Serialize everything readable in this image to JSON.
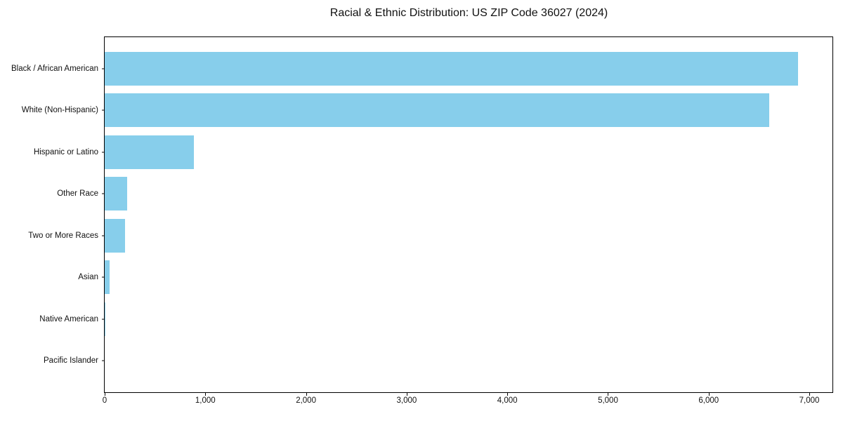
{
  "title": "Racial & Ethnic Distribution: US ZIP Code 36027 (2024)",
  "colors": {
    "bar": "#87CEEB",
    "frame": "#000000",
    "text": "#111111",
    "background": "#ffffff"
  },
  "chart_data": {
    "type": "bar",
    "orientation": "horizontal",
    "title": "Racial & Ethnic Distribution: US ZIP Code 36027 (2024)",
    "categories": [
      "Black / African American",
      "White (Non-Hispanic)",
      "Hispanic or Latino",
      "Other Race",
      "Two or More Races",
      "Asian",
      "Native American",
      "Pacific Islander"
    ],
    "values": [
      6885,
      6600,
      885,
      220,
      205,
      50,
      10,
      0
    ],
    "xlabel": "",
    "ylabel": "",
    "xlim": [
      0,
      7230
    ],
    "xticks": [
      0,
      1000,
      2000,
      3000,
      4000,
      5000,
      6000,
      7000
    ],
    "xtick_labels": [
      "0",
      "1,000",
      "2,000",
      "3,000",
      "4,000",
      "5,000",
      "6,000",
      "7,000"
    ],
    "bar_color": "#87CEEB",
    "grid": false,
    "legend": null
  }
}
